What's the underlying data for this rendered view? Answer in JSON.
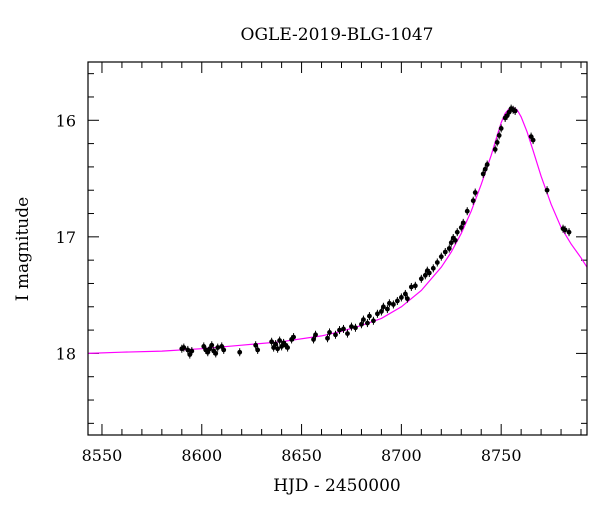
{
  "chart_data": {
    "type": "scatter",
    "title": "OGLE-2019-BLG-1047",
    "xlabel": "HJD - 2450000",
    "ylabel": "I magnitude",
    "xlim": [
      8543,
      8793
    ],
    "ylim": [
      18.7,
      15.5
    ],
    "y_inverted": true,
    "grid": false,
    "legend": "none",
    "x_ticks": [
      8550,
      8600,
      8650,
      8700,
      8750
    ],
    "y_ticks": [
      16,
      17,
      18
    ],
    "colors": {
      "data": "#000000",
      "model": "#ff00ff"
    },
    "model": {
      "name": "",
      "x": [
        8543,
        8560,
        8580,
        8600,
        8620,
        8640,
        8660,
        8670,
        8680,
        8690,
        8700,
        8710,
        8720,
        8725,
        8730,
        8735,
        8740,
        8745,
        8748,
        8750,
        8752,
        8754,
        8756,
        8758,
        8760,
        8763,
        8766,
        8770,
        8775,
        8780,
        8785,
        8790,
        8793
      ],
      "y": [
        18.0,
        17.99,
        17.98,
        17.96,
        17.93,
        17.9,
        17.85,
        17.81,
        17.76,
        17.7,
        17.6,
        17.46,
        17.26,
        17.13,
        16.97,
        16.78,
        16.55,
        16.3,
        16.13,
        16.02,
        15.94,
        15.9,
        15.89,
        15.91,
        15.97,
        16.1,
        16.26,
        16.48,
        16.72,
        16.92,
        17.06,
        17.18,
        17.26
      ]
    },
    "series": [
      {
        "name": "",
        "x": [
          8590,
          8591,
          8593,
          8594,
          8595,
          8601,
          8602,
          8603,
          8604,
          8605,
          8606,
          8607,
          8608,
          8610,
          8611,
          8619,
          8627,
          8628,
          8635,
          8636,
          8637,
          8638,
          8639,
          8640,
          8641,
          8642,
          8643,
          8645,
          8646,
          8656,
          8657,
          8663,
          8664,
          8667,
          8669,
          8671,
          8673,
          8675,
          8677,
          8680,
          8681,
          8683,
          8684,
          8686,
          8688,
          8690,
          8691,
          8693,
          8694,
          8696,
          8698,
          8700,
          8702,
          8703,
          8705,
          8707,
          8710,
          8712,
          8713,
          8714,
          8716,
          8718,
          8720,
          8722,
          8724,
          8725,
          8726,
          8727,
          8728,
          8730,
          8731,
          8733,
          8736,
          8737,
          8741,
          8742,
          8743,
          8747,
          8748,
          8749,
          8750,
          8752,
          8753,
          8754,
          8755,
          8756,
          8757,
          8765,
          8766,
          8773,
          8781,
          8782,
          8784
        ],
        "y": [
          17.96,
          17.95,
          17.97,
          18.01,
          17.98,
          17.94,
          17.97,
          17.99,
          17.96,
          17.93,
          17.98,
          18.0,
          17.95,
          17.94,
          17.97,
          17.99,
          17.93,
          17.97,
          17.9,
          17.95,
          17.92,
          17.96,
          17.89,
          17.94,
          17.91,
          17.93,
          17.95,
          17.88,
          17.86,
          17.88,
          17.84,
          17.87,
          17.82,
          17.84,
          17.8,
          17.79,
          17.83,
          17.77,
          17.78,
          17.75,
          17.71,
          17.74,
          17.68,
          17.72,
          17.66,
          17.64,
          17.6,
          17.62,
          17.57,
          17.58,
          17.55,
          17.52,
          17.49,
          17.53,
          17.43,
          17.42,
          17.36,
          17.33,
          17.29,
          17.31,
          17.27,
          17.22,
          17.17,
          17.13,
          17.1,
          17.05,
          17.01,
          17.03,
          16.96,
          16.92,
          16.88,
          16.78,
          16.69,
          16.62,
          16.46,
          16.42,
          16.38,
          16.25,
          16.19,
          16.13,
          16.07,
          15.98,
          15.96,
          15.93,
          15.9,
          15.91,
          15.92,
          16.14,
          16.17,
          16.6,
          16.93,
          16.94,
          16.96
        ]
      }
    ]
  }
}
